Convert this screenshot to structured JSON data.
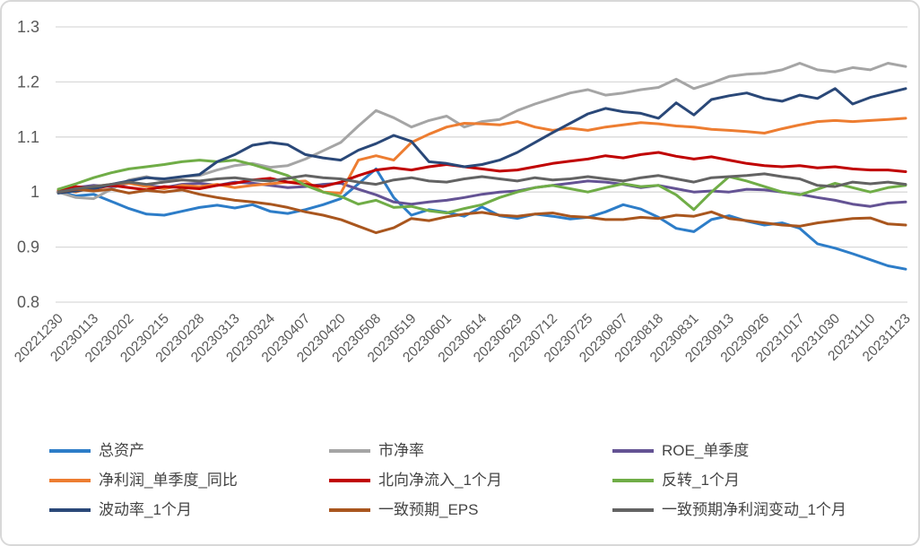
{
  "chart_data": {
    "type": "line",
    "title": "",
    "xlabel": "",
    "ylabel": "",
    "ylim": [
      0.8,
      1.3
    ],
    "grid": "horizontal",
    "legend_position": "bottom",
    "gridline_color": "#d9d9d9",
    "axis_text_color": "#595959",
    "y_ticks": {
      "labels": [
        "1.3",
        "1.2",
        "1.1",
        "1",
        "0.9",
        "0.8"
      ],
      "values": [
        1.3,
        1.2,
        1.1,
        1.0,
        0.9,
        0.8
      ]
    },
    "x_tick_labels": [
      "20221230",
      "20230113",
      "20230202",
      "20230215",
      "20230228",
      "20230313",
      "20230324",
      "20230407",
      "20230420",
      "20230508",
      "20230519",
      "20230601",
      "20230614",
      "20230629",
      "20230712",
      "20230725",
      "20230807",
      "20230818",
      "20230831",
      "20230913",
      "20230926",
      "20231017",
      "20231030",
      "20231110",
      "20231123"
    ],
    "series": [
      {
        "name": "总资产",
        "color": "#2d7dc8",
        "values": [
          1.0,
          0.993,
          0.996,
          0.983,
          0.97,
          0.96,
          0.958,
          0.965,
          0.972,
          0.976,
          0.971,
          0.977,
          0.965,
          0.961,
          0.968,
          0.977,
          0.988,
          1.015,
          1.042,
          0.99,
          0.958,
          0.968,
          0.963,
          0.956,
          0.973,
          0.957,
          0.952,
          0.96,
          0.956,
          0.951,
          0.954,
          0.964,
          0.977,
          0.969,
          0.954,
          0.934,
          0.928,
          0.95,
          0.957,
          0.947,
          0.94,
          0.944,
          0.934,
          0.906,
          0.898,
          0.888,
          0.877,
          0.866,
          0.86
        ]
      },
      {
        "name": "市净率",
        "color": "#a5a5a5",
        "values": [
          1.0,
          0.99,
          0.988,
          1.005,
          1.022,
          1.028,
          1.02,
          1.028,
          1.03,
          1.04,
          1.048,
          1.052,
          1.045,
          1.048,
          1.06,
          1.075,
          1.09,
          1.12,
          1.148,
          1.135,
          1.118,
          1.13,
          1.138,
          1.118,
          1.128,
          1.132,
          1.148,
          1.16,
          1.17,
          1.18,
          1.186,
          1.176,
          1.18,
          1.186,
          1.19,
          1.205,
          1.188,
          1.198,
          1.21,
          1.214,
          1.216,
          1.222,
          1.234,
          1.222,
          1.218,
          1.226,
          1.222,
          1.234,
          1.228
        ]
      },
      {
        "name": "ROE_单季度",
        "color": "#645394",
        "values": [
          1.0,
          1.008,
          1.012,
          1.01,
          1.016,
          1.012,
          1.008,
          1.014,
          1.016,
          1.012,
          1.018,
          1.016,
          1.012,
          1.008,
          1.01,
          1.014,
          1.016,
          1.005,
          0.995,
          0.982,
          0.978,
          0.982,
          0.985,
          0.99,
          0.996,
          1.0,
          1.002,
          1.008,
          1.012,
          1.016,
          1.02,
          1.018,
          1.014,
          1.008,
          1.012,
          1.006,
          1.0,
          1.002,
          1.0,
          1.005,
          1.004,
          1.0,
          0.996,
          0.99,
          0.985,
          0.978,
          0.974,
          0.98,
          0.982
        ]
      },
      {
        "name": "净利润_单季度_同比",
        "color": "#ed7d31",
        "values": [
          1.005,
          1.0,
          1.01,
          1.014,
          1.016,
          1.01,
          1.006,
          1.012,
          1.01,
          1.014,
          1.008,
          1.012,
          1.015,
          1.018,
          1.02,
          1.0,
          0.998,
          1.058,
          1.066,
          1.058,
          1.09,
          1.105,
          1.118,
          1.125,
          1.124,
          1.122,
          1.128,
          1.118,
          1.112,
          1.116,
          1.112,
          1.118,
          1.122,
          1.126,
          1.124,
          1.12,
          1.118,
          1.114,
          1.112,
          1.11,
          1.107,
          1.115,
          1.122,
          1.128,
          1.13,
          1.128,
          1.13,
          1.132,
          1.134
        ]
      },
      {
        "name": "北向净流入_1个月",
        "color": "#c00000",
        "values": [
          1.002,
          1.01,
          1.006,
          1.012,
          1.008,
          1.004,
          1.01,
          1.008,
          1.006,
          1.012,
          1.016,
          1.022,
          1.025,
          1.018,
          1.014,
          1.01,
          1.018,
          1.03,
          1.04,
          1.044,
          1.04,
          1.046,
          1.05,
          1.046,
          1.042,
          1.038,
          1.04,
          1.046,
          1.052,
          1.056,
          1.06,
          1.066,
          1.062,
          1.068,
          1.072,
          1.065,
          1.06,
          1.064,
          1.058,
          1.052,
          1.048,
          1.046,
          1.048,
          1.044,
          1.046,
          1.042,
          1.04,
          1.04,
          1.037
        ]
      },
      {
        "name": "反转_1个月",
        "color": "#70ad47",
        "values": [
          1.005,
          1.015,
          1.026,
          1.035,
          1.042,
          1.046,
          1.05,
          1.055,
          1.058,
          1.055,
          1.058,
          1.05,
          1.04,
          1.03,
          1.012,
          1.0,
          0.992,
          0.978,
          0.985,
          0.972,
          0.974,
          0.966,
          0.962,
          0.97,
          0.977,
          0.99,
          1.0,
          1.008,
          1.012,
          1.006,
          1.0,
          1.008,
          1.015,
          1.01,
          1.012,
          0.995,
          0.968,
          1.0,
          1.028,
          1.02,
          1.01,
          1.0,
          0.995,
          1.005,
          1.016,
          1.008,
          1.0,
          1.008,
          1.012
        ]
      },
      {
        "name": "波动率_1个月",
        "color": "#2a4878",
        "values": [
          0.998,
          1.002,
          1.006,
          1.014,
          1.02,
          1.026,
          1.024,
          1.028,
          1.032,
          1.055,
          1.068,
          1.085,
          1.09,
          1.086,
          1.068,
          1.062,
          1.058,
          1.076,
          1.088,
          1.103,
          1.092,
          1.055,
          1.052,
          1.046,
          1.05,
          1.058,
          1.072,
          1.09,
          1.108,
          1.125,
          1.142,
          1.152,
          1.146,
          1.143,
          1.134,
          1.162,
          1.14,
          1.168,
          1.175,
          1.18,
          1.17,
          1.165,
          1.176,
          1.17,
          1.188,
          1.16,
          1.172,
          1.18,
          1.188
        ]
      },
      {
        "name": "一致预期_EPS",
        "color": "#a9561e",
        "values": [
          1.0,
          1.005,
          1.002,
          1.005,
          0.998,
          1.003,
          1.0,
          1.004,
          0.996,
          0.99,
          0.985,
          0.982,
          0.978,
          0.972,
          0.964,
          0.958,
          0.95,
          0.938,
          0.926,
          0.935,
          0.952,
          0.948,
          0.955,
          0.96,
          0.963,
          0.958,
          0.956,
          0.96,
          0.962,
          0.956,
          0.954,
          0.95,
          0.95,
          0.954,
          0.952,
          0.958,
          0.956,
          0.964,
          0.952,
          0.948,
          0.944,
          0.94,
          0.938,
          0.944,
          0.948,
          0.952,
          0.953,
          0.942,
          0.94
        ]
      },
      {
        "name": "一致预期净利润变动_1个月",
        "color": "#636363",
        "values": [
          1.0,
          1.006,
          1.01,
          1.014,
          1.018,
          1.014,
          1.018,
          1.022,
          1.02,
          1.024,
          1.026,
          1.022,
          1.02,
          1.025,
          1.03,
          1.026,
          1.024,
          1.018,
          1.014,
          1.022,
          1.026,
          1.02,
          1.018,
          1.024,
          1.028,
          1.024,
          1.02,
          1.026,
          1.022,
          1.024,
          1.028,
          1.024,
          1.02,
          1.026,
          1.03,
          1.024,
          1.018,
          1.026,
          1.028,
          1.03,
          1.033,
          1.028,
          1.024,
          1.012,
          1.01,
          1.018,
          1.015,
          1.018,
          1.014
        ]
      }
    ]
  },
  "layout_meta": {
    "legend_rows": 3,
    "legend_cols": 3
  }
}
